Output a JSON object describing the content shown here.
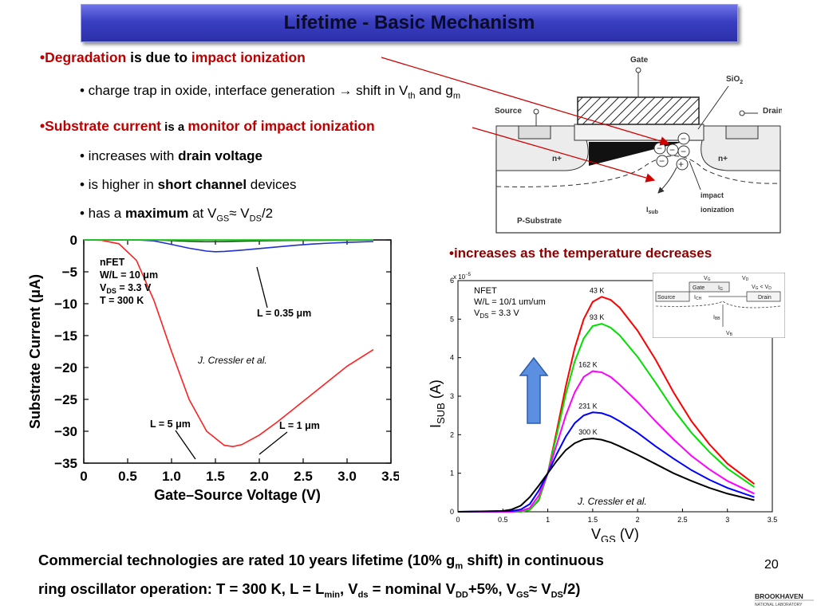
{
  "title": "Lifetime - Basic Mechanism",
  "bullets": {
    "b1_a": "•Degradation",
    "b1_b": " is due to ",
    "b1_c": "impact ionization",
    "b1_sub": "• charge trap in oxide, interface generation  →  shift in V",
    "b1_sub_th": "th",
    "b1_sub_and": " and g",
    "b1_sub_m": "m",
    "b2_a": "•Substrate current",
    "b2_b": " is a ",
    "b2_c": "monitor of impact ionization",
    "b2_s1_a": "• increases with ",
    "b2_s1_b": "drain voltage",
    "b2_s2_a": "• is higher in ",
    "b2_s2_b": "short channel",
    "b2_s2_c": " devices",
    "b2_s3_a": "• has a ",
    "b2_s3_b": "maximum",
    "b2_s3_c": " at V",
    "b2_s3_gs": "GS",
    "b2_s3_d": "≈ V",
    "b2_s3_ds": "DS",
    "b2_s3_e": "/2",
    "temp": "•increases as the temperature decreases"
  },
  "footer": {
    "l1_a": "Commercial technologies are rated 10 years lifetime (10% g",
    "l1_m": "m",
    "l1_b": " shift) in continuous",
    "l2_a": "ring oscillator operation: T = 300 K, L = L",
    "l2_min": "min",
    "l2_b": ", V",
    "l2_ds": "ds",
    "l2_c": " = nominal V",
    "l2_dd": "DD",
    "l2_d": "+5%, V",
    "l2_gs": "GS",
    "l2_e": "≈ V",
    "l2_ds2": "DS",
    "l2_f": "/2)"
  },
  "page_number": "20",
  "logo": {
    "name": "BROOKHAVEN",
    "sub": "NATIONAL LABORATORY"
  },
  "diagram": {
    "gate": "Gate",
    "sio2": "SiO",
    "sio2_sub": "2",
    "source": "Source",
    "drain": "Drain",
    "n_plus_left": "n+",
    "n_plus_right": "n+",
    "impact": "impact",
    "ionization": "ionization",
    "isub": "I",
    "isub_sub": "sub",
    "substrate": "P-Substrate"
  },
  "inset": {
    "vg": "V",
    "vg_sub": "G",
    "vd": "V",
    "vd_sub": "D",
    "cond": "V",
    "cond_g": "G",
    "cond_lt": " < V",
    "cond_d": "D",
    "gate": "Gate",
    "ig": "I",
    "ig_sub": "G",
    "source": "Source",
    "ich": "I",
    "ich_sub": "CH",
    "drain": "Drain",
    "ibb": "I",
    "ibb_sub": "BB",
    "vb": "V",
    "vb_sub": "B"
  },
  "chart_data": [
    {
      "type": "line",
      "xlabel": "Gate–Source Voltage (V)",
      "ylabel": "Substrate Current (μA)",
      "xlim": [
        0,
        3.5
      ],
      "ylim": [
        -35,
        0
      ],
      "xticks": [
        "0",
        "0.5",
        "1.0",
        "1.5",
        "2.0",
        "2.5",
        "3.0",
        "3.5"
      ],
      "yticks": [
        "−35",
        "−30",
        "−25",
        "−20",
        "−15",
        "−10",
        "−5",
        "0"
      ],
      "annotation_lines": [
        "nFET",
        "W/L = 10 μm",
        "V",
        "DS",
        " = 3.3 V",
        "T = 300 K"
      ],
      "credit": "J. Cressler et al.",
      "series": [
        {
          "name": "L = 0.35 μm",
          "color": "#ff2020",
          "x": [
            0,
            0.2,
            0.4,
            0.6,
            0.8,
            1.0,
            1.2,
            1.4,
            1.6,
            1.7,
            1.8,
            2.0,
            2.2,
            2.4,
            2.6,
            2.8,
            3.0,
            3.3
          ],
          "y": [
            0,
            -0.05,
            -0.6,
            -3.2,
            -9.5,
            -17.5,
            -25,
            -30,
            -32.2,
            -32.4,
            -32.1,
            -30.6,
            -28.6,
            -26.4,
            -24.2,
            -22,
            -19.8,
            -17.2
          ]
        },
        {
          "name": "L = 1 μm",
          "color": "#2030d0",
          "x": [
            0,
            0.6,
            0.8,
            1.0,
            1.2,
            1.4,
            1.5,
            1.6,
            1.8,
            2.0,
            2.2,
            2.4,
            2.6,
            2.8,
            3.0,
            3.3
          ],
          "y": [
            0,
            0,
            -0.15,
            -0.7,
            -1.3,
            -1.75,
            -1.85,
            -1.8,
            -1.6,
            -1.35,
            -1.1,
            -0.85,
            -0.65,
            -0.5,
            -0.38,
            -0.25
          ]
        },
        {
          "name": "L = 5 μm",
          "color": "#006000",
          "x": [
            0,
            0.8,
            1.0,
            1.2,
            1.4,
            1.6,
            1.8,
            2.0,
            2.4,
            3.3
          ],
          "y": [
            0,
            0,
            -0.1,
            -0.22,
            -0.28,
            -0.26,
            -0.2,
            -0.14,
            -0.07,
            -0.03
          ]
        },
        {
          "name": "",
          "color": "#20e020",
          "x": [
            0,
            3.3
          ],
          "y": [
            0,
            0
          ]
        }
      ]
    },
    {
      "type": "line",
      "xlabel": "V",
      "xlabel_sub": "GS",
      "xlabel_unit": " (V)",
      "ylabel": "I",
      "ylabel_sub": "SUB",
      "ylabel_unit": " (A)",
      "yscale_label": "x 10",
      "yscale_exp": "−5",
      "xlim": [
        0,
        3.5
      ],
      "ylim": [
        0,
        6
      ],
      "xticks": [
        "0",
        "0.5",
        "1",
        "1.5",
        "2",
        "2.5",
        "3",
        "3.5"
      ],
      "yticks": [
        "0",
        "1",
        "2",
        "3",
        "4",
        "5",
        "6"
      ],
      "annotation_lines": [
        "NFET",
        "W/L = 10/1 um/um",
        "V",
        "DS",
        " = 3.3 V"
      ],
      "credit": "J. Cressler et al.",
      "series": [
        {
          "name": "43 K",
          "color": "#ff0000",
          "x": [
            0,
            0.7,
            0.8,
            0.9,
            1.0,
            1.1,
            1.2,
            1.3,
            1.4,
            1.5,
            1.6,
            1.7,
            1.8,
            2.0,
            2.2,
            2.4,
            2.6,
            2.8,
            3.0,
            3.3
          ],
          "y": [
            0,
            0,
            0.05,
            0.3,
            1.0,
            2.1,
            3.25,
            4.25,
            5.0,
            5.45,
            5.58,
            5.5,
            5.3,
            4.7,
            3.95,
            3.1,
            2.35,
            1.75,
            1.25,
            0.72
          ]
        },
        {
          "name": "93 K",
          "color": "#00e000",
          "x": [
            0,
            0.7,
            0.8,
            0.9,
            1.0,
            1.1,
            1.2,
            1.3,
            1.4,
            1.5,
            1.6,
            1.7,
            1.8,
            2.0,
            2.2,
            2.4,
            2.6,
            2.8,
            3.0,
            3.3
          ],
          "y": [
            0,
            0,
            0.05,
            0.32,
            1.0,
            2.0,
            3.05,
            3.9,
            4.5,
            4.82,
            4.88,
            4.78,
            4.58,
            4.02,
            3.35,
            2.65,
            2.05,
            1.55,
            1.12,
            0.64
          ]
        },
        {
          "name": "162 K",
          "color": "#ff00ff",
          "x": [
            0,
            0.6,
            0.7,
            0.8,
            0.9,
            1.0,
            1.1,
            1.2,
            1.3,
            1.4,
            1.5,
            1.6,
            1.7,
            1.8,
            2.0,
            2.2,
            2.4,
            2.6,
            2.8,
            3.0,
            3.3
          ],
          "y": [
            0,
            0,
            0.02,
            0.1,
            0.42,
            1.0,
            1.75,
            2.5,
            3.1,
            3.5,
            3.65,
            3.62,
            3.5,
            3.3,
            2.85,
            2.35,
            1.88,
            1.45,
            1.1,
            0.8,
            0.47
          ]
        },
        {
          "name": "231 K",
          "color": "#0000ff",
          "x": [
            0,
            0.6,
            0.7,
            0.8,
            0.9,
            1.0,
            1.1,
            1.2,
            1.3,
            1.4,
            1.5,
            1.6,
            1.7,
            1.8,
            2.0,
            2.2,
            2.4,
            2.6,
            2.8,
            3.0,
            3.3
          ],
          "y": [
            0,
            0.02,
            0.06,
            0.2,
            0.55,
            1.0,
            1.5,
            1.95,
            2.3,
            2.5,
            2.58,
            2.56,
            2.48,
            2.35,
            2.05,
            1.7,
            1.38,
            1.08,
            0.83,
            0.62,
            0.38
          ]
        },
        {
          "name": "300 K",
          "color": "#000000",
          "x": [
            0,
            0.5,
            0.6,
            0.7,
            0.8,
            0.9,
            1.0,
            1.1,
            1.2,
            1.3,
            1.4,
            1.5,
            1.6,
            1.7,
            1.8,
            2.0,
            2.2,
            2.4,
            2.6,
            2.8,
            3.0,
            3.3
          ],
          "y": [
            0,
            0.02,
            0.06,
            0.16,
            0.38,
            0.68,
            1.0,
            1.32,
            1.6,
            1.78,
            1.88,
            1.9,
            1.87,
            1.8,
            1.7,
            1.48,
            1.24,
            1.0,
            0.8,
            0.62,
            0.47,
            0.3
          ]
        }
      ]
    }
  ]
}
